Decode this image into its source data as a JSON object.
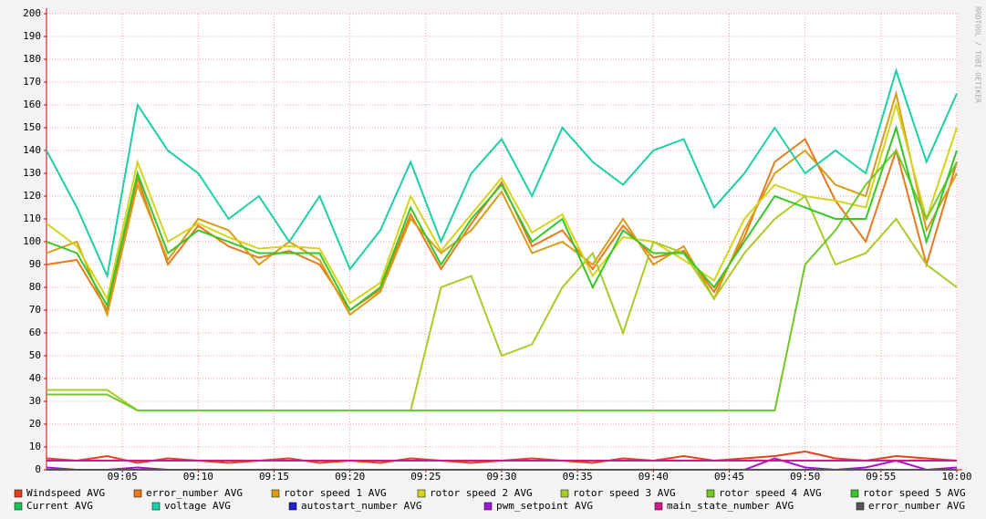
{
  "chart_data": {
    "type": "line",
    "watermark": "RRDTOOL / TOBI OETIKER",
    "x": [
      0,
      2,
      4,
      6,
      8,
      10,
      12,
      14,
      16,
      18,
      20,
      22,
      24,
      26,
      28,
      30,
      32,
      34,
      36,
      38,
      40,
      42,
      44,
      46,
      48,
      50,
      52,
      54,
      56,
      58,
      60
    ],
    "xlim": [
      0,
      60
    ],
    "xticks": [
      {
        "value": 5,
        "label": "09:05"
      },
      {
        "value": 10,
        "label": "09:10"
      },
      {
        "value": 15,
        "label": "09:15"
      },
      {
        "value": 20,
        "label": "09:20"
      },
      {
        "value": 25,
        "label": "09:25"
      },
      {
        "value": 30,
        "label": "09:30"
      },
      {
        "value": 35,
        "label": "09:35"
      },
      {
        "value": 40,
        "label": "09:40"
      },
      {
        "value": 45,
        "label": "09:45"
      },
      {
        "value": 50,
        "label": "09:50"
      },
      {
        "value": 55,
        "label": "09:55"
      },
      {
        "value": 60,
        "label": "10:00"
      }
    ],
    "ylim": [
      0,
      200
    ],
    "yticks": [
      0,
      10,
      20,
      30,
      40,
      50,
      60,
      70,
      80,
      90,
      100,
      110,
      120,
      130,
      140,
      150,
      160,
      170,
      180,
      190,
      200
    ],
    "grid": true,
    "series": [
      {
        "name": "Windspeed AVG",
        "color": "#e0441c",
        "values": [
          5,
          4,
          6,
          3,
          5,
          4,
          3,
          4,
          5,
          3,
          4,
          3,
          5,
          4,
          3,
          4,
          5,
          4,
          3,
          5,
          4,
          6,
          4,
          5,
          6,
          8,
          5,
          4,
          6,
          5,
          4
        ]
      },
      {
        "name": "error_number AVG",
        "color": "#e8791d",
        "values": [
          90,
          92,
          70,
          128,
          90,
          107,
          98,
          93,
          96,
          90,
          70,
          79,
          112,
          88,
          108,
          126,
          98,
          105,
          88,
          107,
          93,
          96,
          78,
          102,
          135,
          145,
          118,
          100,
          140,
          90,
          135
        ]
      },
      {
        "name": "rotor speed 1 AVG",
        "color": "#d89c16",
        "values": [
          95,
          100,
          68,
          125,
          92,
          110,
          105,
          90,
          100,
          92,
          68,
          78,
          110,
          95,
          105,
          122,
          95,
          100,
          90,
          110,
          90,
          98,
          75,
          105,
          130,
          140,
          125,
          120,
          165,
          105,
          130
        ]
      },
      {
        "name": "rotor speed 2 AVG",
        "color": "#d4d41c",
        "values": [
          108,
          98,
          75,
          135,
          100,
          108,
          102,
          97,
          98,
          97,
          73,
          82,
          120,
          96,
          112,
          128,
          104,
          112,
          85,
          102,
          100,
          92,
          83,
          110,
          125,
          120,
          118,
          115,
          160,
          110,
          150
        ]
      },
      {
        "name": "rotor speed 3 AVG",
        "color": "#a8cc26",
        "values": [
          35,
          35,
          35,
          26,
          26,
          26,
          26,
          26,
          26,
          26,
          26,
          26,
          26,
          80,
          85,
          50,
          55,
          80,
          95,
          60,
          100,
          95,
          75,
          95,
          110,
          120,
          90,
          95,
          110,
          90,
          80
        ]
      },
      {
        "name": "rotor speed 4 AVG",
        "color": "#72c828",
        "values": [
          33,
          33,
          33,
          26,
          26,
          26,
          26,
          26,
          26,
          26,
          26,
          26,
          26,
          26,
          26,
          26,
          26,
          26,
          26,
          26,
          26,
          26,
          26,
          26,
          26,
          90,
          105,
          125,
          140,
          110,
          135
        ]
      },
      {
        "name": "rotor speed 5 AVG",
        "color": "#34c72a",
        "values": [
          100,
          95,
          72,
          130,
          95,
          105,
          100,
          95,
          95,
          95,
          70,
          80,
          115,
          90,
          110,
          125,
          100,
          110,
          80,
          105,
          95,
          95,
          80,
          100,
          120,
          115,
          110,
          110,
          150,
          100,
          140
        ]
      },
      {
        "name": "Current AVG",
        "color": "#18c458",
        "values": [
          0,
          0,
          0,
          0,
          0,
          0,
          0,
          0,
          0,
          0,
          0,
          0,
          0,
          0,
          0,
          0,
          0,
          0,
          0,
          0,
          0,
          0,
          0,
          0,
          0,
          0,
          0,
          0,
          0,
          0,
          0
        ]
      },
      {
        "name": "voltage AVG",
        "color": "#1ccfa4",
        "values": [
          140,
          115,
          85,
          160,
          140,
          130,
          110,
          120,
          100,
          120,
          88,
          105,
          135,
          100,
          130,
          145,
          120,
          150,
          135,
          125,
          140,
          145,
          115,
          130,
          150,
          130,
          140,
          130,
          175,
          135,
          165
        ]
      },
      {
        "name": "autostart_number AVG",
        "color": "#2020d0",
        "values": [
          0,
          0,
          0,
          0,
          0,
          0,
          0,
          0,
          0,
          0,
          0,
          0,
          0,
          0,
          0,
          0,
          0,
          0,
          0,
          0,
          0,
          0,
          0,
          0,
          0,
          0,
          0,
          0,
          0,
          0,
          0
        ]
      },
      {
        "name": "pwm_setpoint AVG",
        "color": "#9a1ad0",
        "values": [
          1,
          0,
          0,
          1,
          0,
          0,
          0,
          0,
          0,
          0,
          0,
          0,
          0,
          0,
          0,
          0,
          0,
          0,
          0,
          0,
          0,
          0,
          0,
          0,
          5,
          1,
          0,
          1,
          4,
          0,
          1
        ]
      },
      {
        "name": "main_state_number AVG",
        "color": "#d01a8c",
        "values": [
          4,
          4,
          4,
          4,
          4,
          4,
          4,
          4,
          4,
          4,
          4,
          4,
          4,
          4,
          4,
          4,
          4,
          4,
          4,
          4,
          4,
          4,
          4,
          4,
          4,
          4,
          4,
          4,
          4,
          4,
          4
        ]
      },
      {
        "name": "error_number AVG",
        "color": "#555555",
        "values": [
          0,
          0,
          0,
          0,
          0,
          0,
          0,
          0,
          0,
          0,
          0,
          0,
          0,
          0,
          0,
          0,
          0,
          0,
          0,
          0,
          0,
          0,
          0,
          0,
          0,
          0,
          0,
          0,
          0,
          0,
          0
        ]
      }
    ]
  }
}
